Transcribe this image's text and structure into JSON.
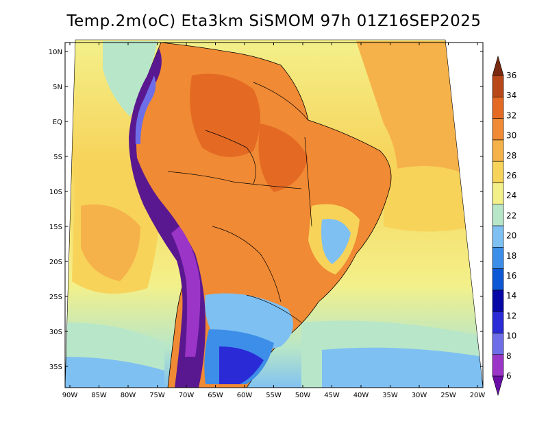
{
  "title": "Temp.2m(oC) Eta3km SiSMOM 97h 01Z16SEP2025",
  "lat_labels": [
    "10N",
    "5N",
    "EQ",
    "5S",
    "10S",
    "15S",
    "20S",
    "25S",
    "30S",
    "35S"
  ],
  "lon_labels": [
    "90W",
    "85W",
    "80W",
    "75W",
    "70W",
    "65W",
    "60W",
    "55W",
    "50W",
    "45W",
    "40W",
    "35W",
    "30W",
    "25W",
    "20W"
  ],
  "colorbar": {
    "labels": [
      "6",
      "8",
      "10",
      "12",
      "14",
      "16",
      "18",
      "20",
      "22",
      "24",
      "26",
      "28",
      "30",
      "32",
      "34",
      "36"
    ],
    "colors": [
      "#6a0da8",
      "#9b35c8",
      "#6e6ee8",
      "#2a2ad6",
      "#0707a8",
      "#0d57d6",
      "#3d8ee8",
      "#7fc0f2",
      "#b8e6c8",
      "#f3f08a",
      "#f7d35a",
      "#f6b24a",
      "#f08a34",
      "#e46a24",
      "#b8471a",
      "#7a2a10"
    ]
  },
  "legend_colors": {
    "ocean_warm": "#f7d35a",
    "ocean_hot": "#f6b24a",
    "ocean_cool": "#f3f08a",
    "land_hot": "#f08a34",
    "andes": "#5a1890"
  }
}
